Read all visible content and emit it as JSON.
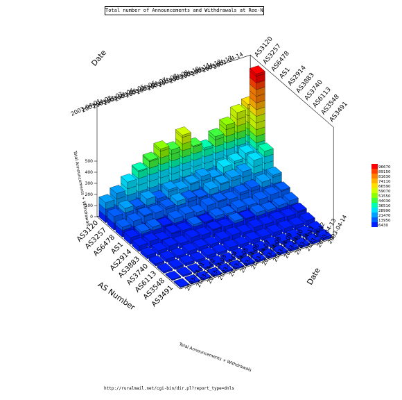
{
  "chart_data": {
    "type": "bar3d",
    "title": "Total number of Announcements and Withdrawals at Ree-Nest",
    "x_axis_title": "AS Number",
    "y_axis_title": "Date",
    "z_axis_title": "Total Announcements + Withdrawals",
    "as_numbers": [
      "AS3120",
      "AS3257",
      "AS6478",
      "AS1",
      "AS2914",
      "AS3883",
      "AS3740",
      "AS6113",
      "AS3548",
      "AS3491"
    ],
    "dates": [
      "2003-04-01",
      "2003-04-02",
      "2003-04-03",
      "2003-04-04",
      "2003-04-05",
      "2003-04-06",
      "2003-04-07",
      "2003-04-08",
      "2003-04-09",
      "2003-04-10",
      "2003-04-11",
      "2003-04-12",
      "2003-04-13",
      "2003-04-14"
    ],
    "values": [
      [
        180,
        230,
        300,
        370,
        430,
        500,
        460,
        560,
        430,
        380,
        450,
        520,
        600,
        640
      ],
      [
        120,
        160,
        140,
        180,
        150,
        200,
        170,
        190,
        220,
        180,
        240,
        260,
        300,
        980
      ],
      [
        90,
        110,
        130,
        120,
        140,
        160,
        150,
        130,
        170,
        190,
        210,
        230,
        300,
        350
      ],
      [
        60,
        80,
        90,
        70,
        100,
        110,
        90,
        120,
        130,
        110,
        140,
        150,
        170,
        200
      ],
      [
        50,
        60,
        40,
        70,
        60,
        80,
        70,
        90,
        80,
        100,
        90,
        110,
        120,
        130
      ],
      [
        30,
        40,
        50,
        40,
        60,
        50,
        70,
        60,
        80,
        70,
        90,
        80,
        90,
        100
      ],
      [
        20,
        30,
        25,
        35,
        40,
        30,
        45,
        50,
        40,
        55,
        50,
        60,
        55,
        70
      ],
      [
        15,
        20,
        25,
        20,
        30,
        25,
        35,
        30,
        40,
        35,
        40,
        45,
        40,
        50
      ],
      [
        10,
        15,
        12,
        18,
        20,
        15,
        22,
        25,
        20,
        28,
        25,
        30,
        28,
        35
      ],
      [
        8,
        10,
        12,
        10,
        14,
        12,
        16,
        15,
        18,
        16,
        20,
        18,
        22,
        25
      ]
    ],
    "z_range": [
      0,
      1000
    ],
    "z_ticks": [
      "0",
      "100",
      "200",
      "300",
      "400",
      "500"
    ],
    "legend": {
      "position": "right",
      "colors": [
        "#ff0000",
        "#ff4000",
        "#ff8000",
        "#ffb000",
        "#ffe000",
        "#d0ff00",
        "#90ff00",
        "#40ff40",
        "#00ffb0",
        "#00e0ff",
        "#00a0ff",
        "#0060ff",
        "#0020ff"
      ],
      "labels": [
        "96670",
        "89150",
        "81630",
        "74110",
        "66590",
        "59070",
        "51550",
        "44030",
        "36510",
        "28990",
        "21470",
        "13950",
        "6430"
      ]
    }
  },
  "footer_url": "http://ruralmail.net/cgi-bin/dir.pl?report_type=dnls"
}
